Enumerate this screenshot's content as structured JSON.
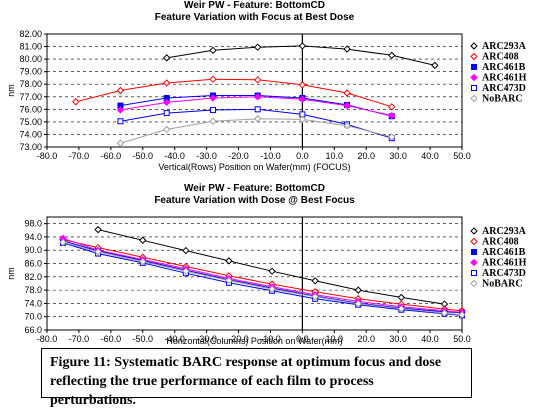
{
  "caption": "Figure 11: Systematic BARC response at optimum focus and dose reflecting the true performance of each film to process perturbations.",
  "chart_data": [
    {
      "type": "line",
      "title": "Weir PW - Feature: BottomCD",
      "subtitle": "Feature Variation with Focus at Best Dose",
      "xlabel": "Vertical(Rows) Position on Wafer(mm) (FOCUS)",
      "ylabel": "nm",
      "xlim": [
        -80,
        50
      ],
      "ylim": [
        73,
        82
      ],
      "xticks": [
        "-80.0",
        "-70.0",
        "-60.0",
        "-50.0",
        "-40.0",
        "-30.0",
        "-20.0",
        "-10.0",
        "0.0",
        "10.0",
        "20.0",
        "30.0",
        "40.0",
        "50.0"
      ],
      "yticks": [
        "73.00",
        "74.00",
        "75.00",
        "76.00",
        "77.00",
        "78.00",
        "79.00",
        "80.00",
        "81.00",
        "82.00"
      ],
      "grid": "horizontal-dashed",
      "legend_position": "right",
      "series": [
        {
          "name": "ARC293A",
          "color": "#000000",
          "marker": "diamond-open",
          "x": [
            -42.5,
            -28,
            -14,
            0,
            14,
            28,
            41.5
          ],
          "values": [
            80.1,
            80.7,
            80.95,
            81.05,
            80.8,
            80.3,
            79.5
          ]
        },
        {
          "name": "ARC408",
          "color": "#ff0000",
          "marker": "diamond-open",
          "x": [
            -71,
            -57,
            -42.5,
            -28,
            -14,
            0,
            14,
            28
          ],
          "values": [
            76.6,
            77.5,
            78.1,
            78.4,
            78.35,
            77.95,
            77.3,
            76.2
          ]
        },
        {
          "name": "ARC461B",
          "color": "#0000ff",
          "marker": "square-filled",
          "x": [
            -57,
            -42.5,
            -28,
            -14,
            0,
            14,
            28
          ],
          "values": [
            76.3,
            76.9,
            77.1,
            77.1,
            76.9,
            76.35,
            75.45
          ]
        },
        {
          "name": "ARC461H",
          "color": "#ff00ff",
          "marker": "diamond-filled",
          "x": [
            -57,
            -42.5,
            -28,
            -14,
            0,
            14,
            28
          ],
          "values": [
            75.95,
            76.55,
            76.9,
            77.0,
            76.8,
            76.3,
            75.5
          ]
        },
        {
          "name": "ARC473D",
          "color": "#0000ff",
          "marker": "square-open",
          "x": [
            -57,
            -42.5,
            -28,
            -14,
            0,
            14,
            28
          ],
          "values": [
            75.05,
            75.7,
            75.95,
            76.0,
            75.6,
            74.8,
            73.7
          ]
        },
        {
          "name": "NoBARC",
          "color": "#a0a0a0",
          "marker": "diamond-open",
          "x": [
            -57,
            -42.5,
            -28,
            -14,
            0,
            14,
            28
          ],
          "values": [
            73.3,
            74.4,
            75.05,
            75.25,
            75.2,
            74.7,
            73.8
          ]
        }
      ]
    },
    {
      "type": "line",
      "title": "Weir PW - Feature: BottomCD",
      "subtitle": "Feature Variation with Dose @ Best Focus",
      "xlabel": "Horizontal(Columns) Position on Wafer(mm)",
      "ylabel": "nm",
      "xlim": [
        -80,
        50
      ],
      "ylim": [
        66,
        100
      ],
      "xticks": [
        "-80.0",
        "-70.0",
        "-60.0",
        "-50.0",
        "-40.0",
        "-30.0",
        "-20.0",
        "-10.0",
        "0.0",
        "10.0",
        "20.0",
        "30.0",
        "40.0",
        "50.0"
      ],
      "yticks": [
        "66.0",
        "70.0",
        "74.0",
        "78.0",
        "82.0",
        "86.0",
        "90.0",
        "94.0",
        "98.0"
      ],
      "grid": "horizontal-dashed",
      "legend_position": "right",
      "series": [
        {
          "name": "ARC293A",
          "color": "#000000",
          "marker": "diamond-open",
          "x": [
            -64,
            -50,
            -36.5,
            -23,
            -9.5,
            4,
            17.5,
            31,
            44.5
          ],
          "values": [
            96.2,
            93.0,
            89.9,
            86.8,
            83.7,
            80.8,
            78.0,
            75.8,
            73.8
          ]
        },
        {
          "name": "ARC408",
          "color": "#ff0000",
          "marker": "diamond-open",
          "x": [
            -75,
            -64,
            -50,
            -36.5,
            -23,
            -9.5,
            4,
            17.5,
            31,
            44.5,
            50
          ],
          "values": [
            93.2,
            90.8,
            87.9,
            85.1,
            82.3,
            79.8,
            77.5,
            75.4,
            73.8,
            72.3,
            71.8
          ]
        },
        {
          "name": "ARC461B",
          "color": "#0000ff",
          "marker": "square-filled",
          "x": [
            -75,
            -64,
            -50,
            -36.5,
            -23,
            -9.5,
            4,
            17.5,
            31,
            44.5,
            50
          ],
          "values": [
            92.8,
            89.8,
            86.9,
            84.0,
            81.1,
            78.6,
            76.2,
            74.1,
            72.6,
            71.5,
            71.2
          ]
        },
        {
          "name": "ARC461H",
          "color": "#ff00ff",
          "marker": "diamond-filled",
          "x": [
            -75,
            -64,
            -50,
            -36.5,
            -23,
            -9.5,
            4,
            17.5,
            31,
            44.5,
            50
          ],
          "values": [
            93.6,
            90.0,
            87.2,
            84.4,
            81.5,
            79.0,
            76.6,
            74.6,
            73.0,
            71.8,
            71.3
          ]
        },
        {
          "name": "ARC473D",
          "color": "#0000ff",
          "marker": "square-open",
          "x": [
            -75,
            -64,
            -50,
            -36.5,
            -23,
            -9.5,
            4,
            17.5,
            31,
            44.5,
            50
          ],
          "values": [
            92.2,
            89.0,
            86.2,
            83.1,
            80.2,
            77.8,
            75.4,
            73.6,
            72.1,
            70.9,
            70.4
          ]
        },
        {
          "name": "NoBARC",
          "color": "#a0a0a0",
          "marker": "diamond-open",
          "x": [
            -75,
            -64,
            -50,
            -36.5,
            -23,
            -9.5,
            4,
            17.5,
            31,
            44.5,
            50
          ],
          "values": [
            92.4,
            89.5,
            86.6,
            83.7,
            80.9,
            78.3,
            76.0,
            73.9,
            72.4,
            71.1,
            70.6
          ]
        }
      ]
    }
  ]
}
